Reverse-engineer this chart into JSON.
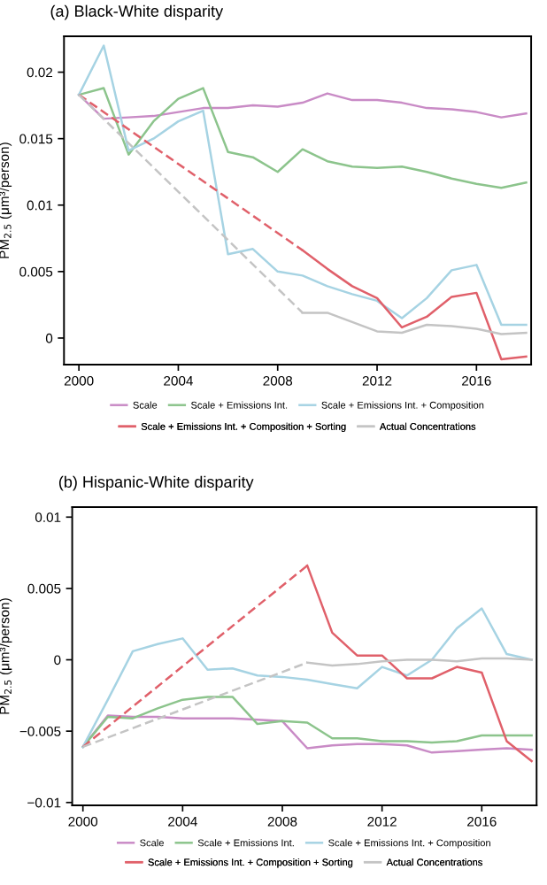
{
  "chart_data": [
    {
      "type": "line",
      "title": "(a) Black-White disparity",
      "ylabel": "PM$_{2.5}$ (μm³/person)",
      "x": [
        2000,
        2001,
        2002,
        2003,
        2004,
        2005,
        2006,
        2007,
        2008,
        2009,
        2010,
        2011,
        2012,
        2013,
        2014,
        2015,
        2016,
        2017,
        2018
      ],
      "xlim": [
        1999.4,
        2018.2
      ],
      "ylim": [
        -0.002,
        0.0227
      ],
      "xticks": [
        2000,
        2004,
        2008,
        2012,
        2016
      ],
      "yticks": [
        0,
        0.005,
        0.01,
        0.015,
        0.02
      ],
      "legend": "bottom",
      "grid": false,
      "series": [
        {
          "name": "Scale",
          "color": "#c98bc6",
          "values": [
            0.0183,
            0.0165,
            0.0166,
            0.0167,
            0.017,
            0.0173,
            0.0173,
            0.0175,
            0.0174,
            0.0177,
            0.0184,
            0.0179,
            0.0179,
            0.0177,
            0.0173,
            0.0172,
            0.017,
            0.0166,
            0.0169
          ]
        },
        {
          "name": "Scale + Emissions Int.",
          "color": "#8cc48c",
          "values": [
            0.0183,
            0.0188,
            0.0138,
            0.0163,
            0.018,
            0.0188,
            0.014,
            0.0136,
            0.0125,
            0.0142,
            0.0133,
            0.0129,
            0.0128,
            0.0129,
            0.0125,
            0.012,
            0.0116,
            0.0113,
            0.0117
          ]
        },
        {
          "name": "Scale + Emissions Int. + Composition",
          "color": "#a6d3e3",
          "values": [
            0.0183,
            0.022,
            0.0141,
            0.015,
            0.0163,
            0.0171,
            0.0063,
            0.0067,
            0.005,
            0.0047,
            0.0039,
            0.0033,
            0.0028,
            0.0015,
            0.003,
            0.0051,
            0.0055,
            0.001,
            0.001
          ]
        },
        {
          "name": "Scale + Emissions Int. + Composition + Sorting",
          "color": "#e0606a",
          "values": [
            null,
            null,
            null,
            null,
            null,
            null,
            null,
            null,
            null,
            0.0066,
            0.0052,
            0.0039,
            0.003,
            0.0008,
            0.0016,
            0.0031,
            0.0034,
            -0.0016,
            -0.0014
          ]
        },
        {
          "name": "Actual Concentrations",
          "color": "#c4c4c4",
          "values": [
            null,
            null,
            null,
            null,
            null,
            null,
            null,
            null,
            null,
            0.0019,
            0.0019,
            0.0012,
            0.0005,
            0.0004,
            0.001,
            0.0009,
            0.0007,
            0.0003,
            0.0004
          ]
        },
        {
          "color": "#e0606a",
          "line_style": "dashed",
          "values": [
            0.0183,
            null,
            null,
            null,
            null,
            null,
            null,
            null,
            null,
            0.0066,
            null,
            null,
            null,
            null,
            null,
            null,
            null,
            null,
            null
          ]
        },
        {
          "color": "#c4c4c4",
          "line_style": "dashed",
          "values": [
            0.0183,
            null,
            null,
            null,
            null,
            null,
            null,
            null,
            null,
            0.0019,
            null,
            null,
            null,
            null,
            null,
            null,
            null,
            null,
            null
          ]
        }
      ]
    },
    {
      "type": "line",
      "title": "(b) Hispanic-White disparity",
      "ylabel": "PM$_{2.5}$ (μm³/person)",
      "x": [
        2000,
        2001,
        2002,
        2003,
        2004,
        2005,
        2006,
        2007,
        2008,
        2009,
        2010,
        2011,
        2012,
        2013,
        2014,
        2015,
        2016,
        2017,
        2018
      ],
      "xlim": [
        1999.57,
        2018.2
      ],
      "ylim": [
        -0.0102,
        0.0107
      ],
      "xticks": [
        2000,
        2004,
        2008,
        2012,
        2016
      ],
      "yticks": [
        {
          "value": -0.01,
          "label": "−0.01"
        },
        {
          "value": -0.005,
          "label": "−0.005"
        },
        0,
        0.005,
        0.01
      ],
      "legend": "bottom",
      "grid": false,
      "series": [
        {
          "name": "Scale",
          "color": "#c98bc6",
          "values": [
            -0.0061,
            -0.0039,
            -0.004,
            -0.004,
            -0.0041,
            -0.0041,
            -0.0041,
            -0.0042,
            -0.0043,
            -0.0062,
            -0.006,
            -0.0059,
            -0.0059,
            -0.006,
            -0.0065,
            -0.0064,
            -0.0063,
            -0.0062,
            -0.0063
          ]
        },
        {
          "name": "Scale + Emissions Int.",
          "color": "#8cc48c",
          "values": [
            -0.0061,
            -0.004,
            -0.0041,
            -0.0034,
            -0.0028,
            -0.0026,
            -0.0026,
            -0.0045,
            -0.0043,
            -0.0044,
            -0.0055,
            -0.0055,
            -0.0057,
            -0.0057,
            -0.0058,
            -0.0057,
            -0.0053,
            -0.0053,
            -0.0053
          ]
        },
        {
          "name": "Scale + Emissions Int. + Composition",
          "color": "#a6d3e3",
          "values": [
            -0.0061,
            -0.0028,
            0.0006,
            0.0011,
            0.0015,
            -0.0007,
            -0.0006,
            -0.0011,
            -0.0012,
            -0.0014,
            -0.0017,
            -0.002,
            -0.0005,
            -0.0011,
            0.0,
            0.0022,
            0.0036,
            0.0004,
            0.0
          ]
        },
        {
          "name": "Scale + Emissions Int. + Composition + Sorting",
          "color": "#e0606a",
          "values": [
            null,
            null,
            null,
            null,
            null,
            null,
            null,
            null,
            null,
            0.0066,
            0.0019,
            0.0003,
            0.0003,
            -0.0013,
            -0.0013,
            -0.0005,
            -0.0009,
            -0.0057,
            -0.0071
          ]
        },
        {
          "name": "Actual Concentrations",
          "color": "#c4c4c4",
          "values": [
            null,
            null,
            null,
            null,
            null,
            null,
            null,
            null,
            null,
            -0.0002,
            -0.0004,
            -0.0003,
            -0.0001,
            0.0,
            0.0,
            -0.0001,
            0.0001,
            0.0001,
            0.0
          ]
        },
        {
          "color": "#e0606a",
          "line_style": "dashed",
          "values": [
            -0.0061,
            null,
            null,
            null,
            null,
            null,
            null,
            null,
            null,
            0.0066,
            null,
            null,
            null,
            null,
            null,
            null,
            null,
            null,
            null
          ]
        },
        {
          "color": "#c4c4c4",
          "line_style": "dashed",
          "values": [
            -0.0061,
            null,
            null,
            null,
            null,
            null,
            null,
            null,
            null,
            -0.0002,
            null,
            null,
            null,
            null,
            null,
            null,
            null,
            null,
            null
          ]
        }
      ]
    }
  ]
}
